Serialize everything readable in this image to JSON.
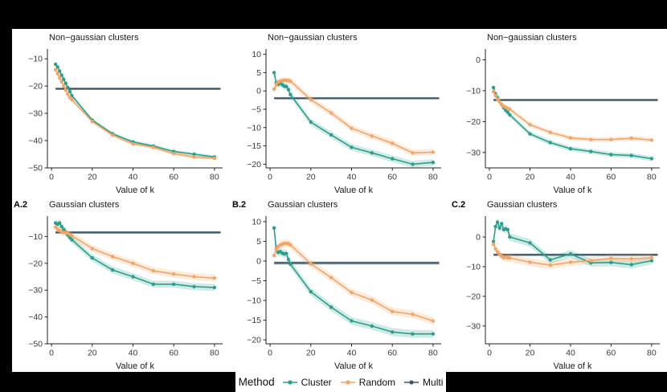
{
  "figure": {
    "background": "#000000",
    "panel_background": "#ffffff"
  },
  "colors": {
    "cluster": "#2aa08c",
    "random": "#f5a464",
    "multi": "#3b5768",
    "axis": "#222222",
    "tick_text": "#3a3a3a",
    "ribbon_opacity": 0.22,
    "multi_ribbon_opacity": 0.25
  },
  "legend": {
    "title": "Method",
    "items": [
      {
        "label": "Cluster",
        "key": "cluster"
      },
      {
        "label": "Random",
        "key": "random"
      },
      {
        "label": "Multi",
        "key": "multi"
      }
    ]
  },
  "chart_data": {
    "type": "line",
    "x_label": "Value of k",
    "x": [
      2,
      3,
      4,
      5,
      6,
      7,
      8,
      9,
      10,
      20,
      30,
      40,
      50,
      60,
      70,
      80
    ],
    "x_ticks": [
      0,
      20,
      40,
      60,
      80
    ],
    "xlim": [
      -2,
      84
    ],
    "panels": [
      {
        "label": "",
        "title": "Non−gaussian clusters",
        "ylim": [
          -50,
          -7
        ],
        "y_ticks": [
          -10,
          -20,
          -30,
          -40,
          -50
        ],
        "multi": -21,
        "multi_ribbon": 0.4,
        "ribbon": 0.6,
        "series": {
          "cluster": [
            -12,
            -13,
            -14.5,
            -16,
            -17.5,
            -19,
            -20.5,
            -22,
            -23.5,
            -32.5,
            -37.5,
            -40.5,
            -42,
            -44,
            -45,
            -46
          ],
          "random": [
            -14,
            -15.5,
            -17,
            -18.5,
            -20,
            -21.5,
            -23,
            -24.2,
            -25,
            -33,
            -38,
            -41.2,
            -42.5,
            -44.8,
            -46,
            -46.5
          ]
        }
      },
      {
        "label": "",
        "title": "Non−gaussian clusters",
        "ylim": [
          -21,
          11
        ],
        "y_ticks": [
          10,
          5,
          0,
          -5,
          -10,
          -15,
          -20
        ],
        "multi": -2,
        "multi_ribbon": 0.35,
        "ribbon": 0.9,
        "series": {
          "cluster": [
            5,
            2.2,
            1.8,
            2.1,
            1.7,
            1.3,
            1.2,
            0.4,
            -1,
            -8.5,
            -12,
            -15.4,
            -16.9,
            -18.5,
            -20,
            -19.5
          ],
          "random": [
            0.5,
            1.8,
            2.4,
            2.7,
            2.8,
            2.9,
            2.9,
            2.8,
            2.7,
            -2.4,
            -6,
            -10.2,
            -12.3,
            -14.3,
            -16.9,
            -16.7
          ]
        }
      },
      {
        "label": "",
        "title": "Non−gaussian clusters",
        "ylim": [
          -35,
          3
        ],
        "y_ticks": [
          0,
          -10,
          -20,
          -30
        ],
        "multi": -13,
        "multi_ribbon": 0.4,
        "ribbon": 0.8,
        "series": {
          "cluster": [
            -9,
            -11,
            -12.2,
            -13.3,
            -14.5,
            -15.5,
            -16.3,
            -17,
            -17.8,
            -24,
            -26.8,
            -28.8,
            -29.7,
            -30.7,
            -31,
            -32
          ],
          "random": [
            -10.3,
            -11.6,
            -12.7,
            -13.6,
            -14.4,
            -15,
            -15.4,
            -15.7,
            -16,
            -21,
            -23.5,
            -25.3,
            -25.8,
            -25.8,
            -25.4,
            -26
          ]
        }
      },
      {
        "label": "A.2",
        "title": "Gaussian clusters",
        "ylim": [
          -50,
          -3
        ],
        "y_ticks": [
          -10,
          -20,
          -30,
          -40,
          -50
        ],
        "multi": -8.5,
        "multi_ribbon": 0.5,
        "ribbon": 1.3,
        "series": {
          "cluster": [
            -5,
            -5.4,
            -5,
            -6.3,
            -7.4,
            -8.4,
            -9.4,
            -10.4,
            -11.2,
            -18,
            -22.5,
            -25,
            -27.8,
            -27.8,
            -28.7,
            -29
          ],
          "random": [
            -6.5,
            -7.3,
            -7.8,
            -8.2,
            -8.5,
            -8.6,
            -8.8,
            -9.3,
            -9.7,
            -14.5,
            -17.5,
            -20,
            -22.8,
            -24,
            -25,
            -25.5
          ]
        }
      },
      {
        "label": "B.2",
        "title": "Gaussian clusters",
        "ylim": [
          -21,
          11
        ],
        "y_ticks": [
          10,
          5,
          0,
          -5,
          -10,
          -15,
          -20
        ],
        "multi": -0.5,
        "multi_ribbon": 0.45,
        "ribbon": 1.0,
        "series": {
          "cluster": [
            8.4,
            3,
            2.2,
            2.4,
            2,
            1.8,
            1.9,
            0.4,
            -0.8,
            -7.8,
            -11.7,
            -15.2,
            -16.5,
            -18,
            -18.5,
            -18.5
          ],
          "random": [
            1.4,
            3,
            3.7,
            4.1,
            4.3,
            4.5,
            4.5,
            4.4,
            4.1,
            -0.7,
            -4.2,
            -8,
            -9.9,
            -12.8,
            -13.5,
            -15.2
          ]
        }
      },
      {
        "label": "C.2",
        "title": "Gaussian clusters",
        "ylim": [
          -36,
          6.5
        ],
        "y_ticks": [
          0,
          -10,
          -20,
          -30
        ],
        "multi": -6,
        "multi_ribbon": 0.45,
        "ribbon": 1.3,
        "series": {
          "cluster": [
            -1.5,
            3.5,
            5,
            3,
            4.5,
            2.5,
            2.7,
            2.5,
            0,
            -2,
            -7.7,
            -5.7,
            -8.7,
            -8.6,
            -9.3,
            -8
          ],
          "random": [
            -2.5,
            -4,
            -5,
            -5.8,
            -6.5,
            -7,
            -6.8,
            -7,
            -7.1,
            -8.5,
            -9.5,
            -8.5,
            -8,
            -7.2,
            -7.4,
            -7
          ]
        }
      }
    ]
  }
}
